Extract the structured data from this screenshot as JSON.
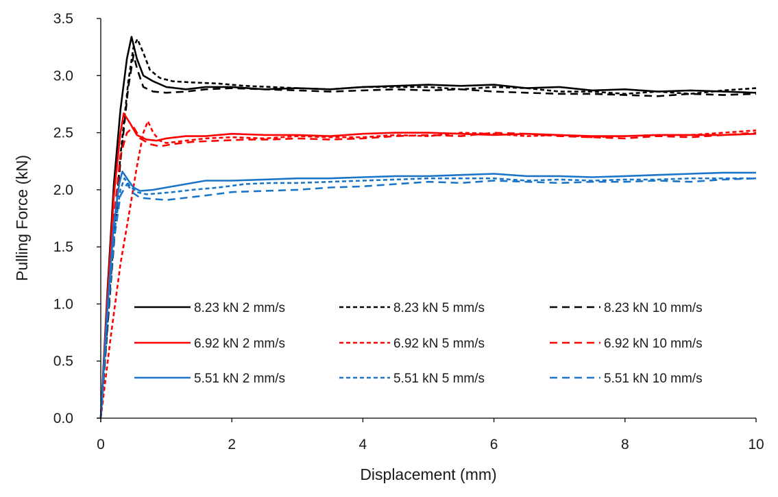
{
  "chart_data": {
    "type": "line",
    "title": "",
    "xlabel": "Displacement (mm)",
    "ylabel": "Pulling Force (kN)",
    "xlim": [
      0,
      10
    ],
    "ylim": [
      0,
      3.5
    ],
    "xticks": [
      0,
      2,
      4,
      6,
      8,
      10
    ],
    "xtick_labels": [
      "0",
      "2",
      "4",
      "6",
      "8",
      "10"
    ],
    "yticks": [
      0,
      0.5,
      1.0,
      1.5,
      2.0,
      2.5,
      3.0,
      3.5
    ],
    "ytick_labels": [
      "0.0",
      "0.5",
      "1.0",
      "1.5",
      "2.0",
      "2.5",
      "3.0",
      "3.5"
    ],
    "grid": false,
    "legend_position": "center-bottom-inside",
    "series": [
      {
        "name": "8.23 kN 2 mm/s",
        "color": "#000000",
        "dash": "solid",
        "x": [
          0,
          0.1,
          0.2,
          0.3,
          0.4,
          0.47,
          0.55,
          0.65,
          0.8,
          1.0,
          1.3,
          1.6,
          2.0,
          2.5,
          3.0,
          3.5,
          4.0,
          4.5,
          5.0,
          5.5,
          6.0,
          6.5,
          7.0,
          7.5,
          8.0,
          8.5,
          9.0,
          9.5,
          10.0
        ],
        "y": [
          0,
          1.1,
          2.05,
          2.7,
          3.15,
          3.34,
          3.15,
          3.0,
          2.95,
          2.9,
          2.88,
          2.9,
          2.9,
          2.88,
          2.89,
          2.88,
          2.9,
          2.91,
          2.92,
          2.91,
          2.92,
          2.89,
          2.9,
          2.87,
          2.88,
          2.86,
          2.87,
          2.86,
          2.85
        ]
      },
      {
        "name": "8.23 kN 5 mm/s",
        "color": "#000000",
        "dash": "short",
        "x": [
          0,
          0.15,
          0.3,
          0.42,
          0.5,
          0.56,
          0.65,
          0.75,
          0.9,
          1.1,
          1.4,
          1.8,
          2.2,
          2.6,
          3.0,
          3.5,
          4.0,
          4.5,
          5.0,
          5.5,
          6.0,
          6.5,
          7.0,
          7.5,
          8.0,
          8.5,
          9.0,
          9.5,
          10.0
        ],
        "y": [
          0,
          1.2,
          2.3,
          2.95,
          3.25,
          3.32,
          3.2,
          3.05,
          2.98,
          2.95,
          2.94,
          2.93,
          2.91,
          2.9,
          2.89,
          2.88,
          2.9,
          2.9,
          2.9,
          2.88,
          2.9,
          2.89,
          2.86,
          2.86,
          2.84,
          2.86,
          2.84,
          2.87,
          2.89
        ]
      },
      {
        "name": "8.23 kN 10 mm/s",
        "color": "#000000",
        "dash": "long",
        "x": [
          0,
          0.15,
          0.3,
          0.42,
          0.5,
          0.56,
          0.65,
          0.8,
          1.0,
          1.3,
          1.6,
          2.0,
          2.5,
          3.0,
          3.5,
          4.0,
          4.5,
          5.0,
          5.5,
          6.0,
          6.5,
          7.0,
          7.5,
          8.0,
          8.5,
          9.0,
          9.5,
          10.0
        ],
        "y": [
          0,
          1.15,
          2.25,
          2.9,
          3.18,
          3.05,
          2.9,
          2.86,
          2.85,
          2.86,
          2.88,
          2.89,
          2.88,
          2.87,
          2.86,
          2.87,
          2.88,
          2.87,
          2.88,
          2.86,
          2.85,
          2.84,
          2.84,
          2.83,
          2.82,
          2.84,
          2.83,
          2.84
        ]
      },
      {
        "name": "6.92 kN 2 mm/s",
        "color": "#ff0000",
        "dash": "solid",
        "x": [
          0,
          0.1,
          0.2,
          0.3,
          0.35,
          0.45,
          0.55,
          0.7,
          0.85,
          1.0,
          1.3,
          1.6,
          2.0,
          2.5,
          3.0,
          3.5,
          4.0,
          4.5,
          5.0,
          5.5,
          6.0,
          6.5,
          7.0,
          7.5,
          8.0,
          8.5,
          9.0,
          9.5,
          10.0
        ],
        "y": [
          0,
          1.05,
          1.95,
          2.5,
          2.67,
          2.58,
          2.48,
          2.44,
          2.43,
          2.45,
          2.47,
          2.47,
          2.49,
          2.48,
          2.48,
          2.47,
          2.49,
          2.5,
          2.5,
          2.49,
          2.48,
          2.49,
          2.48,
          2.47,
          2.47,
          2.48,
          2.48,
          2.48,
          2.49
        ]
      },
      {
        "name": "6.92 kN 5 mm/s",
        "color": "#ff0000",
        "dash": "short",
        "x": [
          0,
          0.15,
          0.3,
          0.45,
          0.55,
          0.65,
          0.72,
          0.8,
          0.9,
          1.0,
          1.3,
          1.6,
          2.0,
          2.5,
          3.0,
          3.5,
          4.0,
          4.5,
          5.0,
          5.5,
          6.0,
          6.5,
          7.0,
          7.5,
          8.0,
          8.5,
          9.0,
          9.5,
          10.0
        ],
        "y": [
          0,
          0.7,
          1.35,
          1.85,
          2.2,
          2.5,
          2.6,
          2.5,
          2.43,
          2.41,
          2.43,
          2.45,
          2.46,
          2.45,
          2.47,
          2.46,
          2.46,
          2.48,
          2.47,
          2.5,
          2.49,
          2.47,
          2.48,
          2.46,
          2.47,
          2.48,
          2.48,
          2.5,
          2.52
        ]
      },
      {
        "name": "6.92 kN 10 mm/s",
        "color": "#ff0000",
        "dash": "long",
        "x": [
          0,
          0.1,
          0.2,
          0.3,
          0.4,
          0.5,
          0.6,
          0.75,
          0.9,
          1.1,
          1.4,
          1.8,
          2.2,
          2.6,
          3.0,
          3.5,
          4.0,
          4.5,
          5.0,
          5.5,
          6.0,
          6.5,
          7.0,
          7.5,
          8.0,
          8.5,
          9.0,
          9.5,
          10.0
        ],
        "y": [
          0,
          0.9,
          1.75,
          2.3,
          2.5,
          2.55,
          2.45,
          2.4,
          2.38,
          2.4,
          2.42,
          2.43,
          2.44,
          2.44,
          2.45,
          2.44,
          2.45,
          2.47,
          2.48,
          2.47,
          2.5,
          2.49,
          2.47,
          2.46,
          2.45,
          2.47,
          2.46,
          2.48,
          2.5
        ]
      },
      {
        "name": "5.51 kN 2 mm/s",
        "color": "#1a75c8",
        "dash": "solid",
        "x": [
          0,
          0.1,
          0.2,
          0.28,
          0.33,
          0.4,
          0.5,
          0.6,
          0.8,
          1.0,
          1.3,
          1.6,
          2.0,
          2.5,
          3.0,
          3.5,
          4.0,
          4.5,
          5.0,
          5.5,
          6.0,
          6.5,
          7.0,
          7.5,
          8.0,
          8.5,
          9.0,
          9.5,
          10.0
        ],
        "y": [
          0,
          0.95,
          1.7,
          2.05,
          2.16,
          2.1,
          2.02,
          1.99,
          2.0,
          2.02,
          2.05,
          2.08,
          2.08,
          2.09,
          2.1,
          2.1,
          2.11,
          2.12,
          2.12,
          2.13,
          2.14,
          2.12,
          2.12,
          2.11,
          2.12,
          2.13,
          2.14,
          2.15,
          2.15
        ]
      },
      {
        "name": "5.51 kN 5 mm/s",
        "color": "#1a75c8",
        "dash": "short",
        "x": [
          0,
          0.1,
          0.2,
          0.3,
          0.36,
          0.45,
          0.55,
          0.7,
          0.9,
          1.1,
          1.4,
          1.8,
          2.2,
          2.6,
          3.0,
          3.5,
          4.0,
          4.5,
          5.0,
          5.5,
          6.0,
          6.5,
          7.0,
          7.5,
          8.0,
          8.5,
          9.0,
          9.5,
          10.0
        ],
        "y": [
          0,
          0.9,
          1.6,
          2.0,
          2.1,
          2.03,
          1.98,
          1.96,
          1.97,
          1.98,
          2.0,
          2.02,
          2.05,
          2.06,
          2.06,
          2.07,
          2.08,
          2.09,
          2.1,
          2.1,
          2.1,
          2.08,
          2.09,
          2.08,
          2.09,
          2.09,
          2.1,
          2.1,
          2.1
        ]
      },
      {
        "name": "5.51 kN 10 mm/s",
        "color": "#1a75c8",
        "dash": "long",
        "x": [
          0,
          0.1,
          0.2,
          0.3,
          0.4,
          0.5,
          0.6,
          0.8,
          1.0,
          1.3,
          1.6,
          2.0,
          2.5,
          3.0,
          3.5,
          4.0,
          4.5,
          5.0,
          5.5,
          6.0,
          6.5,
          7.0,
          7.5,
          8.0,
          8.5,
          9.0,
          9.5,
          10.0
        ],
        "y": [
          0,
          0.85,
          1.55,
          1.95,
          2.05,
          1.97,
          1.93,
          1.92,
          1.91,
          1.93,
          1.95,
          1.98,
          1.99,
          2.0,
          2.02,
          2.03,
          2.05,
          2.07,
          2.06,
          2.08,
          2.07,
          2.06,
          2.07,
          2.07,
          2.08,
          2.07,
          2.09,
          2.1
        ]
      }
    ]
  }
}
